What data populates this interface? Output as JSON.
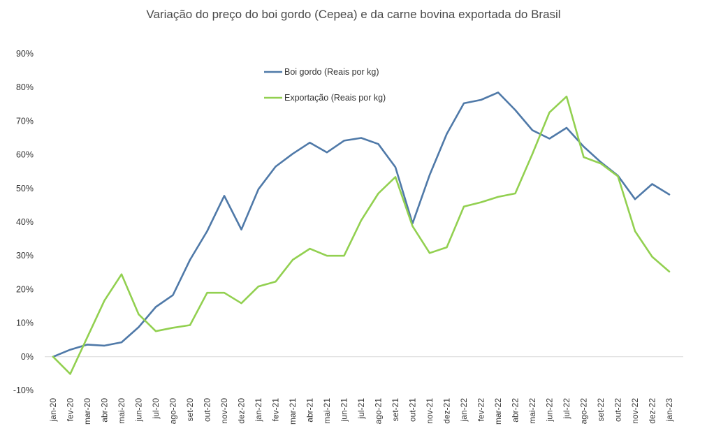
{
  "chart_data": {
    "type": "line",
    "title": "Variação do preço do boi gordo (Cepea) e da carne bovina exportada do Brasil",
    "xlabel": "",
    "ylabel": "",
    "ylim": [
      -10,
      90
    ],
    "ytick_step": 10,
    "y_unit": "%",
    "grid": false,
    "legend_position": "top-center",
    "categories": [
      "jan-20",
      "fev-20",
      "mar-20",
      "abr-20",
      "mai-20",
      "jun-20",
      "jul-20",
      "ago-20",
      "set-20",
      "out-20",
      "nov-20",
      "dez-20",
      "jan-21",
      "fev-21",
      "mar-21",
      "abr-21",
      "mai-21",
      "jun-21",
      "jul-21",
      "ago-21",
      "set-21",
      "out-21",
      "nov-21",
      "dez-21",
      "jan-22",
      "fev-22",
      "mar-22",
      "abr-22",
      "mai-22",
      "jun-22",
      "jul-22",
      "ago-22",
      "set-22",
      "out-22",
      "nov-22",
      "dez-22",
      "jan-23"
    ],
    "series": [
      {
        "name": "Boi gordo (Reais por kg)",
        "color": "#4f79a8",
        "values": [
          0,
          2.1,
          3.6,
          3.3,
          4.3,
          8.8,
          14.8,
          18.3,
          28.8,
          37.3,
          47.8,
          37.8,
          49.8,
          56.5,
          60.3,
          63.6,
          60.7,
          64.2,
          65.0,
          63.2,
          56.3,
          39.6,
          54.0,
          66.2,
          75.3,
          76.3,
          78.5,
          73.3,
          67.3,
          64.8,
          68.0,
          62.4,
          57.8,
          53.8,
          46.8,
          51.3,
          48.2
        ]
      },
      {
        "name": "Exportação (Reais por kg)",
        "color": "#92d050",
        "values": [
          0,
          -5.1,
          5.8,
          16.7,
          24.5,
          12.6,
          7.6,
          8.6,
          9.4,
          19.0,
          19.0,
          15.9,
          20.9,
          22.3,
          28.8,
          32.1,
          30.0,
          30.0,
          40.5,
          48.5,
          53.4,
          38.8,
          30.8,
          32.5,
          44.6,
          45.9,
          47.5,
          48.5,
          60.2,
          72.6,
          77.3,
          59.3,
          57.4,
          53.6,
          37.3,
          29.7,
          25.3
        ]
      }
    ]
  }
}
